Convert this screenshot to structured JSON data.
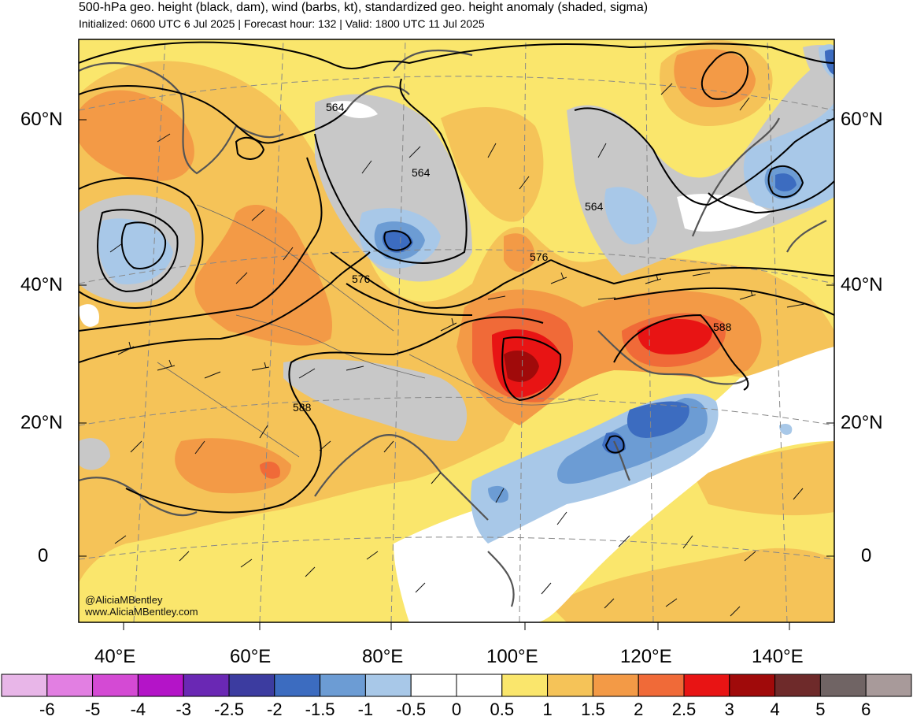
{
  "header": {
    "title": "500-hPa geo. height (black, dam), wind (barbs, kt), standardized geo. height anomaly (shaded, sigma)",
    "subtitle": "Initialized: 0600 UTC 6 Jul 2025 | Forecast hour: 132 | Valid: 1800 UTC 11 Jul 2025"
  },
  "axes": {
    "lat_labels": [
      "60°N",
      "40°N",
      "20°N",
      "0"
    ],
    "lon_labels": [
      "40°E",
      "60°E",
      "80°E",
      "100°E",
      "120°E",
      "140°E"
    ]
  },
  "contour_labels": [
    "564",
    "564",
    "564",
    "576",
    "576",
    "588",
    "588"
  ],
  "credits": {
    "handle": "@AliciaMBentley",
    "website": "www.AliciaMBentley.com"
  },
  "colorbar": {
    "labels": [
      "-6",
      "-5",
      "-4",
      "-3",
      "-2.5",
      "-2",
      "-1.5",
      "-1",
      "-0.5",
      "0",
      "0.5",
      "1",
      "1.5",
      "2",
      "2.5",
      "3",
      "4",
      "5",
      "6"
    ],
    "colors": [
      "#e8b6e8",
      "#e27fe2",
      "#d44ad4",
      "#b414c8",
      "#6a28b4",
      "#3c3ca0",
      "#3c6cc0",
      "#6c9cd4",
      "#a8c8e8",
      "#ffffff",
      "#ffffff",
      "#fae66c",
      "#f5c358",
      "#f39a46",
      "#f06a38",
      "#e81414",
      "#a00a0a",
      "#6e2a2a",
      "#706464",
      "#a89a9a"
    ]
  },
  "colors": {
    "land_gray": "#c8c8c8",
    "background_yellow": "#fae66c"
  }
}
